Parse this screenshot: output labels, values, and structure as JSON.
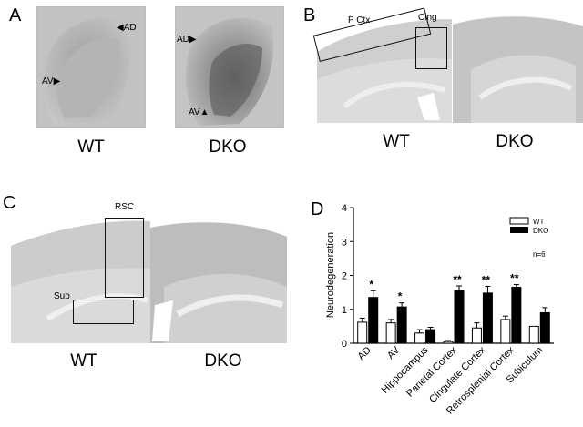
{
  "panels": {
    "A": {
      "letter": "A",
      "left_label": "WT",
      "right_label": "DKO",
      "left_arrows": [
        "AD",
        "AV"
      ],
      "right_arrows": [
        "AD",
        "AV"
      ]
    },
    "B": {
      "letter": "B",
      "left_label": "WT",
      "right_label": "DKO",
      "roi_labels": [
        "P Ctx",
        "Cing"
      ]
    },
    "C": {
      "letter": "C",
      "left_label": "WT",
      "right_label": "DKO",
      "roi_labels": [
        "RSC",
        "Sub"
      ]
    },
    "D": {
      "letter": "D"
    }
  },
  "chart_data": {
    "type": "bar",
    "ylabel": "Neurodegeneration",
    "ylim": [
      0,
      4
    ],
    "yticks": [
      "0",
      "1",
      "2",
      "3",
      "4"
    ],
    "categories": [
      "AD",
      "AV",
      "Hippocampus",
      "Parietal Cortex",
      "Cingulate Cortex",
      "Retrosplenial Cortex",
      "Subiculum"
    ],
    "series": [
      {
        "name": "WT",
        "color": "#ffffff",
        "values": [
          0.62,
          0.6,
          0.3,
          0.05,
          0.45,
          0.7,
          0.5
        ],
        "errors": [
          0.12,
          0.1,
          0.1,
          0.03,
          0.15,
          0.1,
          0.0
        ]
      },
      {
        "name": "DKO",
        "color": "#000000",
        "values": [
          1.35,
          1.07,
          0.4,
          1.55,
          1.48,
          1.65,
          0.9
        ],
        "errors": [
          0.2,
          0.12,
          0.07,
          0.14,
          0.2,
          0.08,
          0.15
        ]
      }
    ],
    "significance": [
      "*",
      "*",
      "",
      "**",
      "**",
      "**",
      ""
    ],
    "annotation": "n=6",
    "legend_position": "top-right",
    "grid": false
  }
}
